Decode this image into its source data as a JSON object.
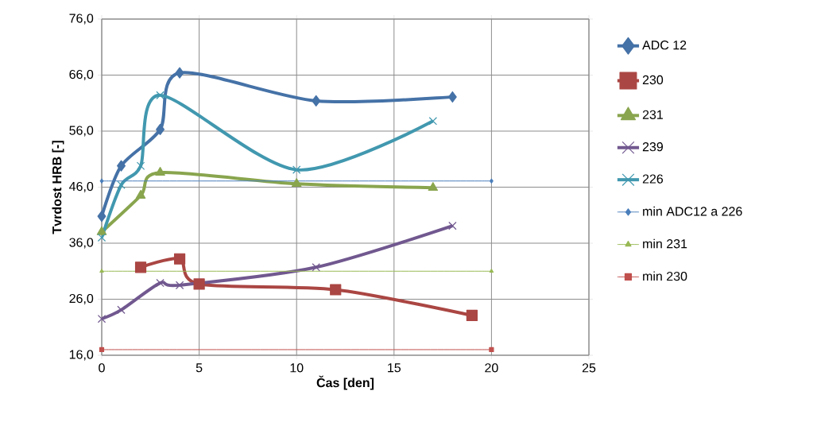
{
  "chart_data": {
    "type": "line",
    "xlabel": "Čas [den]",
    "ylabel": "Tvrdost HRB [-]",
    "xlim": [
      0,
      25
    ],
    "xticks": [
      0,
      5,
      10,
      15,
      20,
      25
    ],
    "ylim": [
      16,
      76
    ],
    "yticks": [
      {
        "value": 16,
        "label": "16,0"
      },
      {
        "value": 26,
        "label": "26,0"
      },
      {
        "value": 36,
        "label": "36,0"
      },
      {
        "value": 46,
        "label": "46,0"
      },
      {
        "value": 56,
        "label": "56,0"
      },
      {
        "value": 66,
        "label": "66,0"
      },
      {
        "value": 76,
        "label": "76,0"
      }
    ],
    "grid": true,
    "legend": "right",
    "series": [
      {
        "name": "ADC 12",
        "color": "#4572a7",
        "marker": "diamond",
        "x": [
          0,
          1,
          3,
          4,
          11,
          18
        ],
        "values": [
          40.8,
          49.8,
          56.3,
          66.4,
          61.4,
          62.1
        ]
      },
      {
        "name": "230",
        "color": "#aa4643",
        "marker": "square",
        "x": [
          2,
          4,
          5,
          12,
          19
        ],
        "values": [
          31.7,
          33.2,
          28.7,
          27.7,
          23.1
        ]
      },
      {
        "name": "231",
        "color": "#89a54e",
        "marker": "triangle",
        "x": [
          0,
          2,
          3,
          10,
          17
        ],
        "values": [
          38.0,
          44.5,
          48.6,
          46.6,
          45.9
        ]
      },
      {
        "name": "239",
        "color": "#71588f",
        "marker": "cross",
        "x": [
          0,
          1,
          3,
          4,
          11,
          18
        ],
        "values": [
          22.5,
          24.1,
          28.9,
          28.5,
          31.7,
          39.1
        ]
      },
      {
        "name": "226",
        "color": "#4198af",
        "marker": "cross",
        "x": [
          0,
          1,
          2,
          3,
          10,
          17
        ],
        "values": [
          37.0,
          46.4,
          49.8,
          62.4,
          49.1,
          57.8
        ]
      },
      {
        "name": "min ADC12 a 226",
        "color": "#4a7ebb",
        "marker": "diamond",
        "x": [
          0,
          20
        ],
        "values": [
          47.1,
          47.1
        ]
      },
      {
        "name": "min 231",
        "color": "#98b954",
        "marker": "triangle",
        "x": [
          0,
          20
        ],
        "values": [
          31.0,
          31.0
        ]
      },
      {
        "name": "min 230",
        "color": "#c0504d",
        "marker": "square",
        "x": [
          0,
          20
        ],
        "values": [
          17.0,
          17.0
        ]
      }
    ]
  }
}
